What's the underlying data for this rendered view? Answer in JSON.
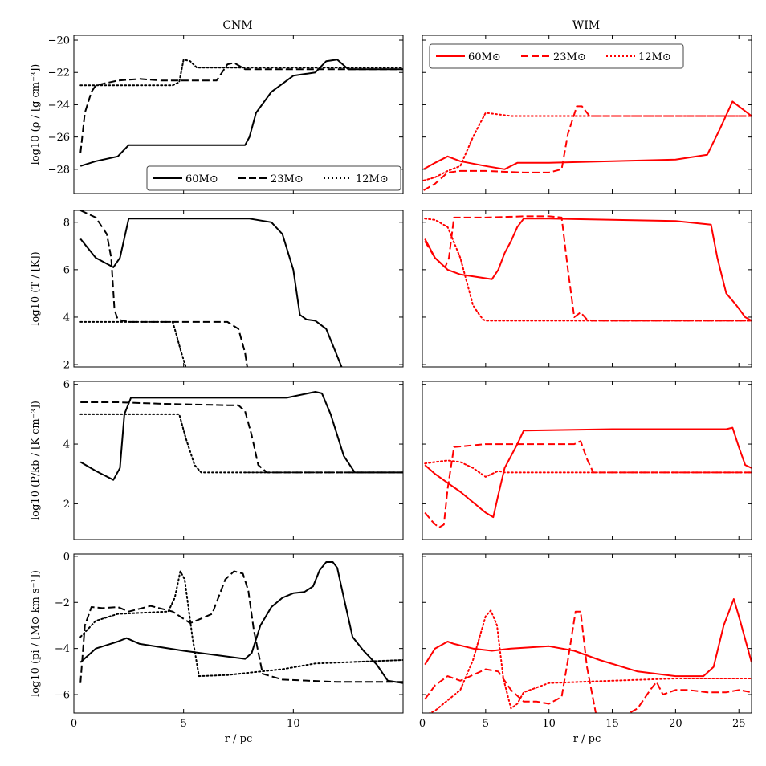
{
  "figure": {
    "columns": [
      "CNM",
      "WIM"
    ],
    "xlabel": "r / pc"
  },
  "styles": {
    "black": "#000000",
    "red": "#ff0000"
  },
  "legend": {
    "labels": [
      "60M⊙",
      "23M⊙",
      "12M⊙"
    ]
  },
  "chart_data": [
    {
      "type": "line",
      "panel": "CNM-density",
      "title": "CNM",
      "ylabel": "log10 (ρ / [g cm⁻³])",
      "xlim": [
        0,
        15
      ],
      "ylim": [
        -29.5,
        -19.7
      ],
      "xticks": [
        0,
        5,
        10
      ],
      "yticks": [
        -28,
        -26,
        -24,
        -22,
        -20
      ],
      "show_xticklabels": false,
      "color": "black",
      "legend": "bottom-right",
      "series": [
        {
          "name": "60M⊙",
          "dash": "solid",
          "x": [
            0.3,
            1,
            2,
            2.5,
            5,
            7.8,
            8,
            8.3,
            9,
            10,
            11,
            11.5,
            12,
            12.5,
            15
          ],
          "y": [
            -27.8,
            -27.5,
            -27.2,
            -26.5,
            -26.5,
            -26.5,
            -26,
            -24.5,
            -23.2,
            -22.2,
            -22,
            -21.3,
            -21.2,
            -21.8,
            -21.8
          ]
        },
        {
          "name": "23M⊙",
          "dash": "dashed",
          "x": [
            0.3,
            0.5,
            0.8,
            1,
            2,
            3,
            4,
            5,
            6,
            6.5,
            7,
            7.3,
            7.8,
            8.5,
            10,
            15
          ],
          "y": [
            -27,
            -24.5,
            -23.2,
            -22.8,
            -22.5,
            -22.4,
            -22.5,
            -22.5,
            -22.5,
            -22.5,
            -21.5,
            -21.4,
            -21.8,
            -21.8,
            -21.8,
            -21.8
          ]
        },
        {
          "name": "12M⊙",
          "dash": "dotted",
          "x": [
            0.3,
            2,
            3,
            4.5,
            4.8,
            5,
            5.3,
            5.6,
            6,
            10,
            15
          ],
          "y": [
            -22.8,
            -22.8,
            -22.8,
            -22.8,
            -22.6,
            -21.2,
            -21.3,
            -21.7,
            -21.7,
            -21.7,
            -21.7
          ]
        }
      ]
    },
    {
      "type": "line",
      "panel": "WIM-density",
      "title": "WIM",
      "ylabel": "",
      "xlim": [
        0,
        26
      ],
      "ylim": [
        -29.5,
        -19.7
      ],
      "xticks": [
        0,
        5,
        10,
        15,
        20,
        25
      ],
      "yticks": [
        -28,
        -26,
        -24,
        -22,
        -20
      ],
      "show_xticklabels": false,
      "show_yticklabels": false,
      "color": "red",
      "legend": "top-left",
      "series": [
        {
          "name": "60M⊙",
          "dash": "solid",
          "x": [
            0.1,
            1,
            2,
            3,
            5,
            6.5,
            7.5,
            10,
            15,
            20,
            22.5,
            23.5,
            24.5,
            25,
            26
          ],
          "y": [
            -28,
            -27.6,
            -27.2,
            -27.5,
            -27.8,
            -28,
            -27.6,
            -27.6,
            -27.5,
            -27.4,
            -27.1,
            -25.5,
            -23.8,
            -24.1,
            -24.7
          ]
        },
        {
          "name": "23M⊙",
          "dash": "dashed",
          "x": [
            0.1,
            1,
            2,
            3,
            5,
            8,
            10,
            11,
            11.5,
            12.2,
            12.6,
            13.2,
            15,
            20,
            26
          ],
          "y": [
            -29.3,
            -28.9,
            -28.2,
            -28.1,
            -28.1,
            -28.2,
            -28.2,
            -28,
            -25.8,
            -24.1,
            -24.1,
            -24.7,
            -24.7,
            -24.7,
            -24.7
          ]
        },
        {
          "name": "12M⊙",
          "dash": "dotted",
          "x": [
            0.1,
            1,
            2,
            3,
            4,
            5,
            6,
            7,
            8,
            15,
            26
          ],
          "y": [
            -28.7,
            -28.5,
            -28.1,
            -27.8,
            -26,
            -24.5,
            -24.6,
            -24.7,
            -24.7,
            -24.7,
            -24.7
          ]
        }
      ]
    },
    {
      "type": "line",
      "panel": "CNM-temperature",
      "ylabel": "log10 (T / [K])",
      "xlim": [
        0,
        15
      ],
      "ylim": [
        1.9,
        8.5
      ],
      "xticks": [
        0,
        5,
        10
      ],
      "yticks": [
        2,
        4,
        6,
        8
      ],
      "show_xticklabels": false,
      "color": "black",
      "series": [
        {
          "name": "60M⊙",
          "dash": "solid",
          "x": [
            0.3,
            1,
            1.8,
            2.1,
            2.5,
            5,
            8,
            9,
            9.5,
            10,
            10.3,
            10.6,
            11,
            11.5,
            12.2
          ],
          "y": [
            7.3,
            6.5,
            6.1,
            6.5,
            8.15,
            8.15,
            8.15,
            8,
            7.5,
            6,
            4.1,
            3.9,
            3.85,
            3.5,
            1.9
          ]
        },
        {
          "name": "23M⊙",
          "dash": "dashed",
          "x": [
            0.3,
            1,
            1.5,
            1.7,
            1.85,
            2,
            2.5,
            4,
            7,
            7.5,
            7.8,
            7.9
          ],
          "y": [
            8.5,
            8.2,
            7.5,
            6.5,
            4.3,
            3.9,
            3.8,
            3.8,
            3.8,
            3.5,
            2.5,
            1.9
          ]
        },
        {
          "name": "12M⊙",
          "dash": "dotted",
          "x": [
            0.3,
            2,
            4.5,
            4.6,
            4.9,
            5.1
          ],
          "y": [
            3.8,
            3.8,
            3.8,
            3.5,
            2.5,
            1.9
          ]
        }
      ]
    },
    {
      "type": "line",
      "panel": "WIM-temperature",
      "ylabel": "",
      "xlim": [
        0,
        26
      ],
      "ylim": [
        1.9,
        8.5
      ],
      "xticks": [
        0,
        5,
        10,
        15,
        20,
        25
      ],
      "yticks": [
        2,
        4,
        6,
        8
      ],
      "show_xticklabels": false,
      "show_yticklabels": false,
      "color": "red",
      "series": [
        {
          "name": "60M⊙",
          "dash": "solid",
          "x": [
            0.2,
            1,
            2,
            3,
            5.5,
            6,
            6.5,
            7,
            7.5,
            8,
            10,
            15,
            20,
            22.8,
            23.3,
            24,
            24.8,
            25.5,
            26
          ],
          "y": [
            7.3,
            6.5,
            6,
            5.8,
            5.6,
            6,
            6.7,
            7.2,
            7.8,
            8.15,
            8.15,
            8.1,
            8.05,
            7.9,
            6.5,
            5,
            4.5,
            4,
            3.85
          ]
        },
        {
          "name": "23M⊙",
          "dash": "dashed",
          "x": [
            0.2,
            1,
            1.8,
            2.1,
            2.5,
            5,
            8,
            10,
            11,
            11.5,
            12,
            12.5,
            13,
            13.4,
            14,
            20,
            26
          ],
          "y": [
            7.2,
            6.5,
            6.1,
            6.5,
            8.2,
            8.2,
            8.25,
            8.25,
            8.2,
            6,
            4,
            4.2,
            3.9,
            3.85,
            3.85,
            3.85,
            3.85
          ]
        },
        {
          "name": "12M⊙",
          "dash": "dotted",
          "x": [
            0.2,
            1,
            2,
            3,
            4,
            4.5,
            4.8,
            5,
            6,
            10,
            26
          ],
          "y": [
            8.15,
            8.1,
            7.8,
            6.5,
            4.5,
            4.1,
            3.9,
            3.85,
            3.85,
            3.85,
            3.85
          ]
        }
      ]
    },
    {
      "type": "line",
      "panel": "CNM-pressure",
      "ylabel": "log10 (P/kb / [K cm⁻³])",
      "xlim": [
        0,
        15
      ],
      "ylim": [
        0.8,
        6.1
      ],
      "xticks": [
        0,
        5,
        10
      ],
      "yticks": [
        2,
        4,
        6
      ],
      "show_xticklabels": false,
      "color": "black",
      "series": [
        {
          "name": "60M⊙",
          "dash": "solid",
          "x": [
            0.3,
            1,
            1.8,
            2.1,
            2.3,
            2.6,
            5,
            9,
            9.7,
            11,
            11.3,
            11.7,
            12.3,
            12.8,
            13,
            15
          ],
          "y": [
            3.4,
            3.1,
            2.8,
            3.2,
            5,
            5.55,
            5.55,
            5.55,
            5.55,
            5.75,
            5.7,
            5,
            3.6,
            3.05,
            3.05,
            3.05
          ]
        },
        {
          "name": "23M⊙",
          "dash": "dashed",
          "x": [
            0.3,
            2,
            4,
            7,
            7.5,
            7.8,
            8.1,
            8.4,
            8.8,
            10,
            15
          ],
          "y": [
            5.4,
            5.4,
            5.35,
            5.3,
            5.3,
            5.1,
            4.3,
            3.3,
            3.05,
            3.05,
            3.05
          ]
        },
        {
          "name": "12M⊙",
          "dash": "dotted",
          "x": [
            0.3,
            2,
            4.5,
            4.8,
            5.1,
            5.5,
            5.8,
            6,
            10,
            15
          ],
          "y": [
            5,
            5,
            5,
            5,
            4.2,
            3.3,
            3.05,
            3.05,
            3.05,
            3.05
          ]
        }
      ]
    },
    {
      "type": "line",
      "panel": "WIM-pressure",
      "ylabel": "",
      "xlim": [
        0,
        26
      ],
      "ylim": [
        0.8,
        6.1
      ],
      "xticks": [
        0,
        5,
        10,
        15,
        20,
        25
      ],
      "yticks": [
        2,
        4,
        6
      ],
      "show_xticklabels": false,
      "show_yticklabels": false,
      "color": "red",
      "series": [
        {
          "name": "60M⊙",
          "dash": "solid",
          "x": [
            0.2,
            1,
            2,
            3,
            5,
            5.6,
            6,
            6.5,
            7.5,
            8,
            15,
            20,
            24,
            24.5,
            25,
            25.5,
            26
          ],
          "y": [
            3.3,
            3,
            2.7,
            2.4,
            1.7,
            1.55,
            2.3,
            3.2,
            4,
            4.45,
            4.5,
            4.5,
            4.5,
            4.55,
            3.9,
            3.3,
            3.2
          ]
        },
        {
          "name": "23M⊙",
          "dash": "dashed",
          "x": [
            0.2,
            0.8,
            1.3,
            1.7,
            2,
            2.5,
            5,
            10,
            12,
            12.5,
            13,
            13.5,
            14,
            20,
            26
          ],
          "y": [
            1.7,
            1.4,
            1.2,
            1.3,
            2.5,
            3.9,
            4,
            4,
            4,
            4.1,
            3.5,
            3.05,
            3.05,
            3.05,
            3.05
          ]
        },
        {
          "name": "12M⊙",
          "dash": "dotted",
          "x": [
            0.2,
            1,
            2,
            3,
            4,
            5,
            6,
            6.5,
            7,
            10,
            26
          ],
          "y": [
            3.35,
            3.4,
            3.45,
            3.4,
            3.2,
            2.9,
            3.1,
            3.05,
            3.05,
            3.05,
            3.05
          ]
        }
      ]
    },
    {
      "type": "line",
      "panel": "CNM-momentum",
      "ylabel": "log10 (p̄i / [M⊙ km s⁻¹])",
      "xlim": [
        0,
        15
      ],
      "ylim": [
        -6.8,
        0.1
      ],
      "xticks": [
        0,
        5,
        10
      ],
      "yticks": [
        -6,
        -4,
        -2,
        0
      ],
      "show_xticklabels": true,
      "color": "black",
      "series": [
        {
          "name": "60M⊙",
          "dash": "solid",
          "x": [
            0.3,
            1,
            2,
            2.4,
            3,
            5,
            7.8,
            8.1,
            8.5,
            9,
            9.5,
            10,
            10.5,
            10.9,
            11.2,
            11.5,
            11.8,
            12,
            12.3,
            12.7,
            13.2,
            13.8,
            14.3,
            15
          ],
          "y": [
            -4.6,
            -4,
            -3.7,
            -3.55,
            -3.8,
            -4.1,
            -4.45,
            -4.2,
            -3,
            -2.2,
            -1.8,
            -1.6,
            -1.55,
            -1.3,
            -0.6,
            -0.25,
            -0.25,
            -0.5,
            -1.8,
            -3.5,
            -4.1,
            -4.7,
            -5.4,
            -5.5
          ]
        },
        {
          "name": "23M⊙",
          "dash": "dashed",
          "x": [
            0.3,
            0.5,
            0.8,
            1.3,
            2,
            2.5,
            3.5,
            4.5,
            5.3,
            6.3,
            6.9,
            7.3,
            7.7,
            7.95,
            8.2,
            8.6,
            9.5,
            12,
            15
          ],
          "y": [
            -5.5,
            -3,
            -2.2,
            -2.25,
            -2.2,
            -2.4,
            -2.15,
            -2.4,
            -2.9,
            -2.5,
            -1,
            -0.65,
            -0.75,
            -1.5,
            -3.2,
            -5.1,
            -5.35,
            -5.45,
            -5.45
          ]
        },
        {
          "name": "12M⊙",
          "dash": "dotted",
          "x": [
            0.3,
            1,
            2,
            4.3,
            4.6,
            4.85,
            5.05,
            5.4,
            5.7,
            7,
            8,
            9.5,
            11,
            15
          ],
          "y": [
            -3.5,
            -2.8,
            -2.5,
            -2.4,
            -1.8,
            -0.65,
            -1,
            -3.5,
            -5.2,
            -5.15,
            -5.05,
            -4.9,
            -4.65,
            -4.5
          ]
        }
      ]
    },
    {
      "type": "line",
      "panel": "WIM-momentum",
      "ylabel": "",
      "xlim": [
        0,
        26
      ],
      "ylim": [
        -6.8,
        0.1
      ],
      "xticks": [
        0,
        5,
        10,
        15,
        20,
        25
      ],
      "yticks": [
        -6,
        -4,
        -2,
        0
      ],
      "show_xticklabels": true,
      "show_yticklabels": false,
      "color": "red",
      "series": [
        {
          "name": "60M⊙",
          "dash": "solid",
          "x": [
            0.2,
            1,
            2,
            2.5,
            4,
            5.5,
            7,
            10,
            12,
            14,
            17,
            20,
            22.2,
            23,
            23.8,
            24.6,
            25.1,
            26
          ],
          "y": [
            -4.7,
            -4,
            -3.7,
            -3.8,
            -4,
            -4.1,
            -4,
            -3.9,
            -4.1,
            -4.5,
            -5,
            -5.2,
            -5.2,
            -4.8,
            -3,
            -1.85,
            -2.8,
            -4.6
          ]
        },
        {
          "name": "23M⊙",
          "dash": "dashed",
          "x": [
            0.2,
            1,
            2,
            3,
            5,
            6,
            7,
            8,
            9,
            10,
            11,
            11.5,
            12.1,
            12.5,
            13,
            13.7,
            14,
            16,
            17,
            18,
            18.5,
            19,
            20,
            21,
            22.5,
            24,
            25,
            26
          ],
          "y": [
            -6.2,
            -5.6,
            -5.2,
            -5.4,
            -4.9,
            -5,
            -5.8,
            -6.3,
            -6.3,
            -6.4,
            -6.1,
            -4.5,
            -2.4,
            -2.4,
            -4.8,
            -6.8,
            -6.9,
            -6.9,
            -6.6,
            -5.8,
            -5.45,
            -6,
            -5.8,
            -5.8,
            -5.9,
            -5.9,
            -5.8,
            -5.9
          ]
        },
        {
          "name": "12M⊙",
          "dash": "dotted",
          "x": [
            0.2,
            1,
            3,
            4,
            5,
            5.4,
            5.9,
            6.4,
            7,
            7.5,
            8,
            10,
            15,
            20,
            26
          ],
          "y": [
            -6.9,
            -6.7,
            -5.8,
            -4.5,
            -2.6,
            -2.35,
            -3,
            -5.3,
            -6.6,
            -6.4,
            -5.9,
            -5.5,
            -5.4,
            -5.3,
            -5.3
          ]
        }
      ]
    }
  ]
}
